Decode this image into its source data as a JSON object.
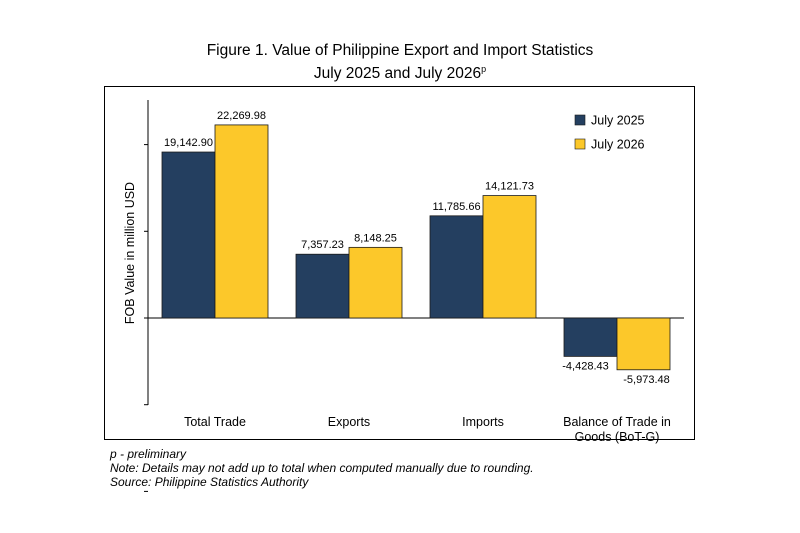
{
  "title_line1": "Figure 1. Value of Philippine Export and Import Statistics",
  "title_line2": "July 2025 and July 2026",
  "title_superscript": "p",
  "footnotes": {
    "preliminary": "p - preliminary",
    "note": "Note: Details may not add up to total when computed manually due to rounding.",
    "source": "Source: Philippine Statistics Authority"
  },
  "colors": {
    "july_2025": "#243f60",
    "july_2026": "#fcc82a"
  },
  "chart_data": {
    "type": "bar",
    "ylabel": "FOB Value in million USD",
    "ylim": [
      -20000,
      25000
    ],
    "yticks": [
      -20000,
      -10000,
      0,
      10000,
      20000
    ],
    "grid": false,
    "legend_position": "top-right",
    "categories": [
      "Total Trade",
      "Exports",
      "Imports",
      "Balance of Trade in Goods (BoT-G)"
    ],
    "category_lines": [
      [
        "Total Trade"
      ],
      [
        "Exports"
      ],
      [
        "Imports"
      ],
      [
        "Balance of Trade in",
        "Goods (BoT-G)"
      ]
    ],
    "series": [
      {
        "name": "July 2025",
        "values": [
          19142.9,
          7357.23,
          11785.66,
          -4428.43
        ],
        "labels": [
          "19,142.90",
          "7,357.23",
          "11,785.66",
          "-4,428.43"
        ]
      },
      {
        "name": "July 2026",
        "values": [
          22269.98,
          8148.25,
          14121.73,
          -5973.48
        ],
        "labels": [
          "22,269.98",
          "8,148.25",
          "14,121.73",
          "-5,973.48"
        ]
      }
    ]
  }
}
